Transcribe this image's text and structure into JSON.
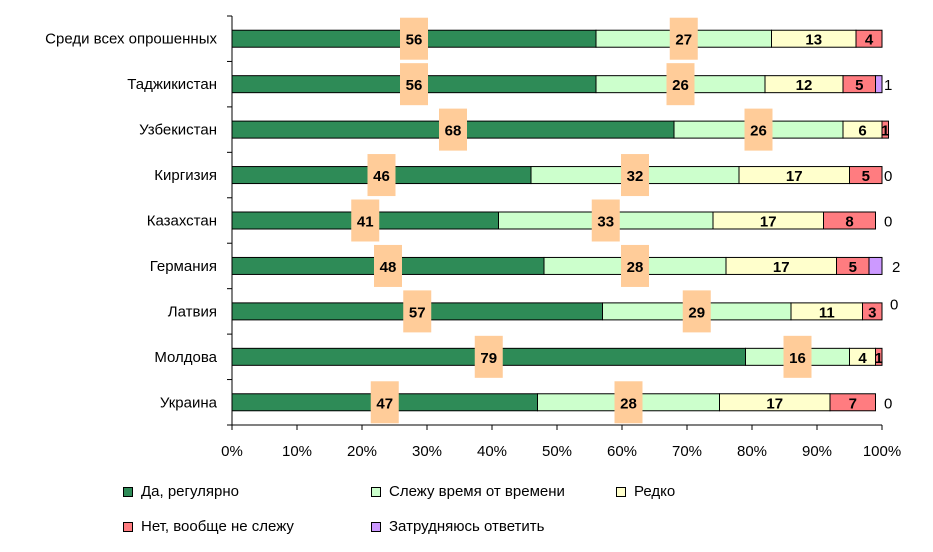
{
  "chart_data": {
    "type": "bar",
    "orientation": "horizontal",
    "stacked": true,
    "categories": [
      "Среди всех опрошенных",
      "Таджикистан",
      "Узбекистан",
      "Киргизия",
      "Казахстан",
      "Германия",
      "Латвия",
      "Молдова",
      "Украина"
    ],
    "series": [
      {
        "name": "Да, регулярно",
        "color": "#2E8B57",
        "values": [
          56,
          56,
          68,
          46,
          41,
          48,
          57,
          79,
          47
        ]
      },
      {
        "name": "Слежу время от времени",
        "color": "#CCFFCC",
        "values": [
          27,
          26,
          26,
          32,
          33,
          28,
          29,
          16,
          28
        ]
      },
      {
        "name": "Редко",
        "color": "#FFFFCC",
        "values": [
          13,
          12,
          6,
          17,
          17,
          17,
          11,
          4,
          17
        ]
      },
      {
        "name": "Нет, вообще не слежу",
        "color": "#FF7C80",
        "values": [
          4,
          5,
          1,
          5,
          8,
          5,
          3,
          1,
          7
        ]
      },
      {
        "name": "Затрудняюсь ответить",
        "color": "#CC99FF",
        "values": [
          0,
          1,
          0,
          0,
          0,
          2,
          0,
          0,
          0
        ]
      }
    ],
    "data_label_texts": [
      [
        "56",
        "27",
        "13",
        "4",
        ""
      ],
      [
        "56",
        "26",
        "12",
        "5",
        "1"
      ],
      [
        "68",
        "26",
        "6",
        "1",
        ""
      ],
      [
        "46",
        "32",
        "17",
        "5",
        "0"
      ],
      [
        "41",
        "33",
        "17",
        "8",
        "0"
      ],
      [
        "48",
        "28",
        "17",
        "5",
        "2"
      ],
      [
        "57",
        "29",
        "11",
        "3",
        "0"
      ],
      [
        "79",
        "16",
        "4",
        "1",
        ""
      ],
      [
        "47",
        "28",
        "17",
        "7",
        "0"
      ]
    ],
    "first_two_labels_highlight": "#FFCC99",
    "x_ticks": [
      "0%",
      "10%",
      "20%",
      "30%",
      "40%",
      "50%",
      "60%",
      "70%",
      "80%",
      "90%",
      "100%"
    ],
    "xlim": [
      0,
      100
    ],
    "grid": false,
    "legend_position": "bottom",
    "title": "",
    "xlabel": "",
    "ylabel": ""
  }
}
